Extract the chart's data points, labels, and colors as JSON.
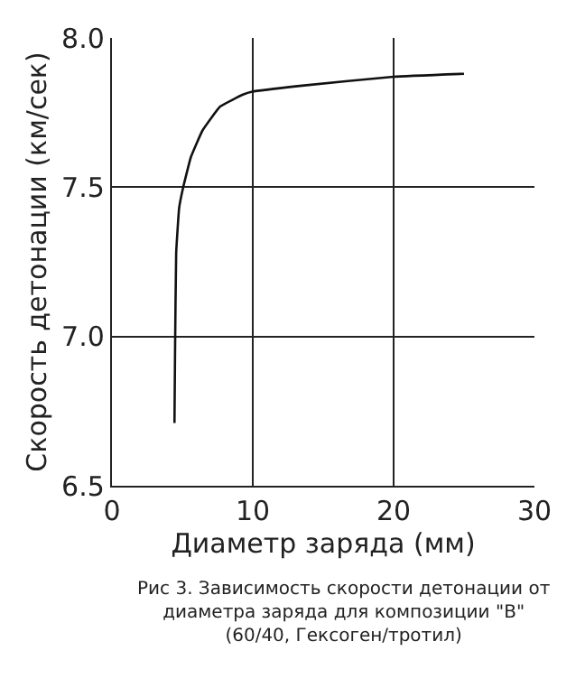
{
  "chart_data": {
    "type": "line",
    "xlabel": "Диаметр заряда (мм)",
    "ylabel": "Скорость детонации (км/сек)",
    "x": [
      4.44,
      4.48,
      4.56,
      4.77,
      5.06,
      5.6,
      6.43,
      7.68,
      9.3,
      9.96,
      13.5,
      20,
      25.0
    ],
    "series": [
      {
        "color": "#111111",
        "values": [
          6.71,
          6.94,
          7.28,
          7.43,
          7.5,
          7.6,
          7.69,
          7.77,
          7.81,
          7.82,
          7.84,
          7.87,
          7.88
        ]
      }
    ],
    "xlim": [
      0,
      30
    ],
    "xticks": [
      0,
      10,
      20,
      30
    ],
    "ylim": [
      6.5,
      8.0
    ],
    "yticks": [
      {
        "value": 6.5,
        "label": "6.5"
      },
      {
        "value": 7.0,
        "label": "7.0"
      },
      {
        "value": 7.5,
        "label": "7.5"
      },
      {
        "value": 8.0,
        "label": "8.0"
      }
    ],
    "grid": true,
    "legend": false,
    "marker": "none",
    "line_style": "solid",
    "annotations": [
      "Рис 3. Зависимость скорости детонации от\nдиаметра заряда для композиции \"В\"\n(60/40, Гексоген/тротил)"
    ]
  }
}
